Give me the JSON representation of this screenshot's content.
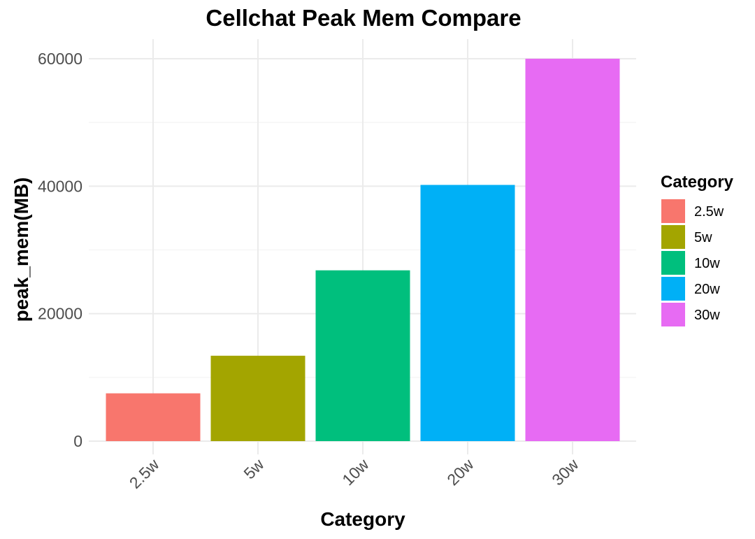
{
  "chart_data": {
    "type": "bar",
    "title": "Cellchat Peak Mem Compare",
    "xlabel": "Category",
    "ylabel": "peak_mem(MB)",
    "categories": [
      "2.5w",
      "5w",
      "10w",
      "20w",
      "30w"
    ],
    "values": [
      7500,
      13400,
      26800,
      40200,
      60000
    ],
    "colors": [
      "#F8766D",
      "#A3A500",
      "#00BF7D",
      "#00B0F6",
      "#E76BF3"
    ],
    "ylim": [
      0,
      60000
    ],
    "yticks": [
      0,
      20000,
      40000,
      60000
    ],
    "ytick_labels": [
      "0",
      "20000",
      "40000",
      "60000"
    ],
    "grid": true,
    "legend": {
      "title": "Category",
      "placement": "right",
      "entries": [
        "2.5w",
        "5w",
        "10w",
        "20w",
        "30w"
      ]
    }
  }
}
